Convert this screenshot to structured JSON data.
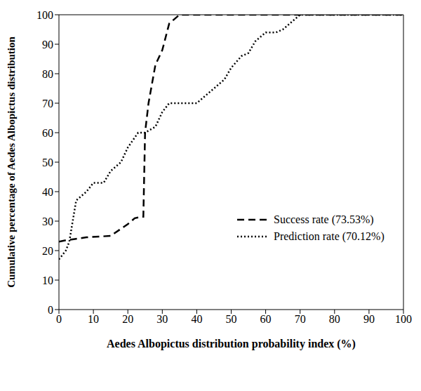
{
  "chart_data": {
    "type": "line",
    "xlabel": "Aedes Albopictus distribution probability index (%)",
    "ylabel": "Cumulative percentage of Aedes Albopictus distribution",
    "xlim": [
      0,
      100
    ],
    "xticks": [
      0,
      10,
      20,
      30,
      40,
      50,
      60,
      70,
      80,
      90,
      100
    ],
    "ylim": [
      0,
      100
    ],
    "yticks": [
      0,
      10,
      20,
      30,
      40,
      50,
      60,
      70,
      80,
      90,
      100
    ],
    "grid": false,
    "legend": "right",
    "series": [
      {
        "name": "Success rate (73.53%)",
        "color": "#000000",
        "line_style": "dashed",
        "marker": "none",
        "x": [
          0,
          2,
          5,
          8,
          15,
          20,
          22,
          24,
          24.5,
          25,
          26,
          28,
          30,
          32,
          35,
          40,
          100
        ],
        "values": [
          23,
          23.5,
          24,
          24.5,
          25,
          29,
          31,
          31.5,
          31.5,
          60,
          70,
          83,
          88,
          97,
          100,
          100,
          100
        ]
      },
      {
        "name": "Prediction rate (70.12%)",
        "color": "#000000",
        "line_style": "dotted",
        "marker": "none",
        "x": [
          0,
          2,
          3,
          5,
          8,
          10,
          13,
          15,
          18,
          20,
          23,
          25,
          28,
          30,
          32,
          40,
          43,
          48,
          50,
          53,
          55,
          57,
          60,
          63,
          65,
          68,
          70,
          100
        ],
        "values": [
          17,
          20,
          23,
          37,
          40,
          43,
          43,
          47,
          50,
          55,
          60,
          60,
          62,
          67,
          70,
          70,
          73,
          78,
          82,
          86,
          87,
          91,
          94,
          94,
          95,
          98,
          100,
          100
        ]
      }
    ]
  }
}
